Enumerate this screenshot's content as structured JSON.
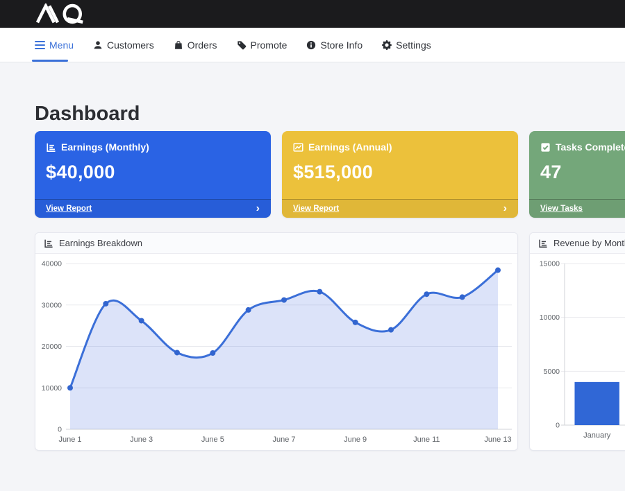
{
  "colors": {
    "accent": "#3b71d9",
    "topbar_bg": "#1b1b1d",
    "nav_bg": "#ffffff",
    "page_bg": "#f4f5f8",
    "card_border": "#e5e7ee",
    "header_bg": "#fafbfd",
    "text": "#2c2e33",
    "nav_text": "#32353b",
    "tick": "#5f6368",
    "grid": "#e9eaee",
    "axis": "#d2d3d7"
  },
  "topbar": {
    "logo_text": "MQ"
  },
  "nav": {
    "items": [
      {
        "label": "Menu",
        "icon": "hamburger-icon",
        "active": true
      },
      {
        "label": "Customers",
        "icon": "person-icon",
        "active": false
      },
      {
        "label": "Orders",
        "icon": "bag-icon",
        "active": false
      },
      {
        "label": "Promote",
        "icon": "tag-icon",
        "active": false
      },
      {
        "label": "Store Info",
        "icon": "info-icon",
        "active": false
      },
      {
        "label": "Settings",
        "icon": "gear-icon",
        "active": false
      }
    ]
  },
  "page": {
    "title": "Dashboard"
  },
  "stat_cards": [
    {
      "title": "Earnings (Monthly)",
      "value": "$40,000",
      "link_label": "View Report",
      "color": "#2a63e4",
      "icon": "bar-chart-icon"
    },
    {
      "title": "Earnings (Annual)",
      "value": "$515,000",
      "link_label": "View Report",
      "color": "#ecc13b",
      "icon": "line-chart-icon"
    },
    {
      "title": "Tasks Completed",
      "value": "47",
      "link_label": "View Tasks",
      "color": "#74a77a",
      "icon": "check-square-icon"
    }
  ],
  "icons": {
    "chevron_right": "›"
  },
  "chart_data": [
    {
      "type": "area",
      "title": "Earnings Breakdown",
      "x": [
        "June 1",
        "June 2",
        "June 3",
        "June 4",
        "June 5",
        "June 6",
        "June 7",
        "June 8",
        "June 9",
        "June 10",
        "June 11",
        "June 12",
        "June 13"
      ],
      "values": [
        10000,
        30300,
        26200,
        18500,
        18400,
        28800,
        31200,
        33200,
        25800,
        24000,
        32600,
        31900,
        38400
      ],
      "ylim": [
        0,
        40000
      ],
      "yticks": [
        0,
        10000,
        20000,
        30000,
        40000
      ],
      "x_label_every": 2,
      "grid": true,
      "legend": false,
      "line_color": "#3b6fd8",
      "fill_color": "rgba(78,115,223,0.2)",
      "point_color": "#3265cf"
    },
    {
      "type": "bar",
      "title": "Revenue by Month",
      "categories": [
        "January"
      ],
      "values": [
        4000
      ],
      "ylim": [
        0,
        15000
      ],
      "yticks": [
        0,
        5000,
        10000,
        15000
      ],
      "grid": true,
      "legend": false,
      "bar_color": "#3067d6",
      "truncated_right": true,
      "slots_visible": 3
    }
  ]
}
